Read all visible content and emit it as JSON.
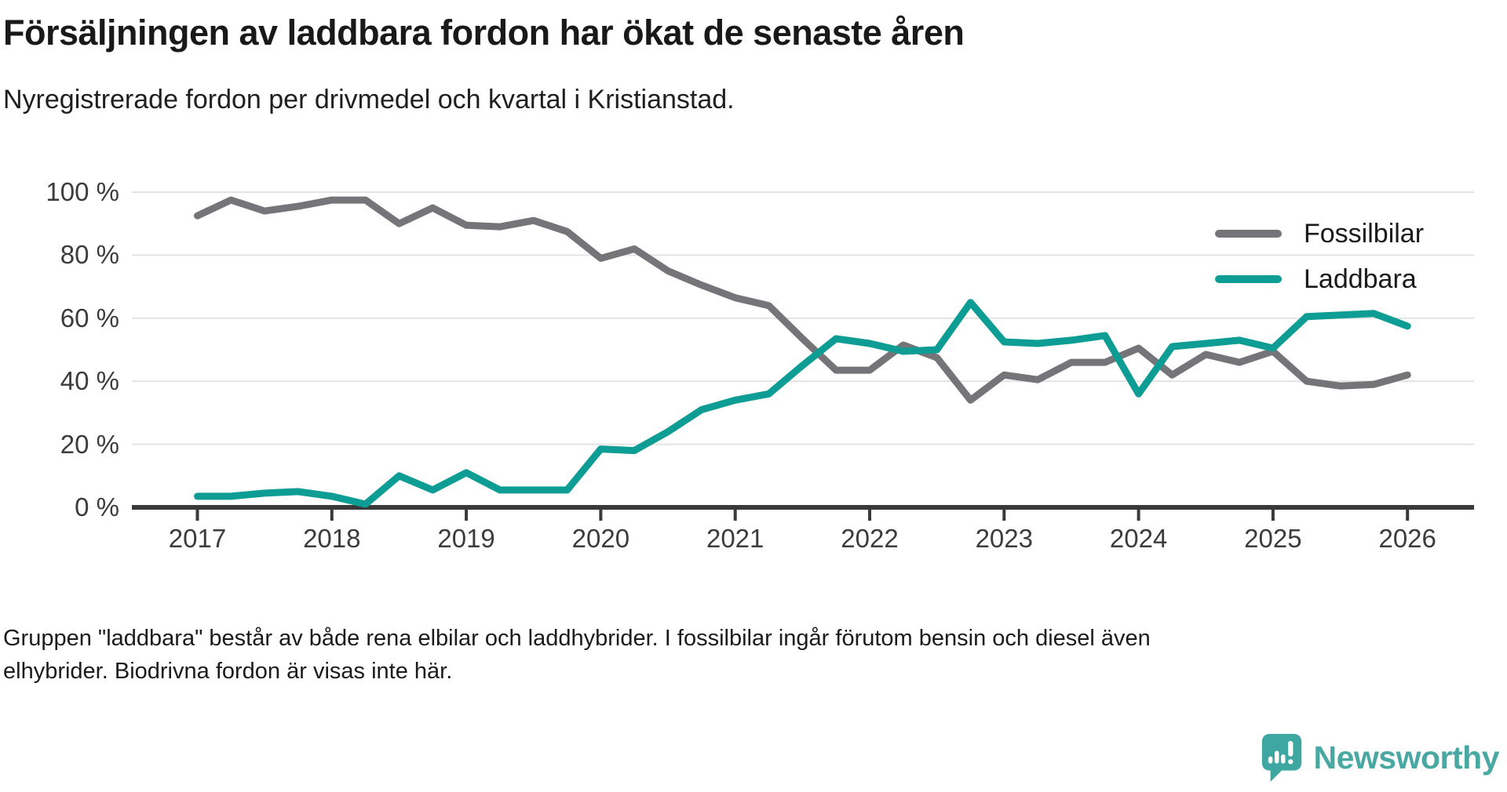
{
  "header": {
    "title": "Försäljningen av laddbara fordon har ökat de senaste åren",
    "subtitle": "Nyregistrerade fordon per drivmedel och kvartal i Kristianstad."
  },
  "legend": [
    {
      "label": "Fossilbilar",
      "color": "#757579"
    },
    {
      "label": "Laddbara",
      "color": "#0d9d94"
    }
  ],
  "footnote": {
    "line1": "Gruppen \"laddbara\" består av både rena elbilar och laddhybrider. I fossilbilar ingår förutom bensin och diesel även",
    "line2": "elhybrider. Biodrivna fordon är visas inte här."
  },
  "branding": {
    "name": "Newsworthy",
    "logo_icon": "speech-bubble-bar-chart-icon",
    "logo_color": "#3fa7a1",
    "text_color": "#4aa8a2"
  },
  "chart_data": {
    "type": "line",
    "title": "Försäljningen av laddbara fordon har ökat de senaste åren",
    "subtitle": "Nyregistrerade fordon per drivmedel och kvartal i Kristianstad.",
    "xlabel": "",
    "ylabel": "",
    "ylim": [
      0,
      100
    ],
    "grid": true,
    "legend_position": "top-right",
    "y_tick_labels": [
      "100 %",
      "80 %",
      "60 %",
      "40 %",
      "20 %",
      "0 %"
    ],
    "x_tick_labels": [
      "2017",
      "2018",
      "2019",
      "2020",
      "2021",
      "2022",
      "2023",
      "2024",
      "2025",
      "2026"
    ],
    "quarters": [
      "2017 Q1",
      "2017 Q2",
      "2017 Q3",
      "2017 Q4",
      "2018 Q1",
      "2018 Q2",
      "2018 Q3",
      "2018 Q4",
      "2019 Q1",
      "2019 Q2",
      "2019 Q3",
      "2019 Q4",
      "2020 Q1",
      "2020 Q2",
      "2020 Q3",
      "2020 Q4",
      "2021 Q1",
      "2021 Q2",
      "2021 Q3",
      "2021 Q4",
      "2022 Q1",
      "2022 Q2",
      "2022 Q3",
      "2022 Q4",
      "2023 Q1",
      "2023 Q2",
      "2023 Q3",
      "2023 Q4",
      "2024 Q1",
      "2024 Q2",
      "2024 Q3",
      "2024 Q4",
      "2025 Q1",
      "2025 Q2",
      "2025 Q3",
      "2025 Q4",
      "2026 Q1"
    ],
    "series": [
      {
        "name": "Fossilbilar",
        "color": "#757579",
        "unit": "%",
        "values": [
          92.5,
          97.5,
          94,
          95.5,
          97.5,
          97.5,
          90,
          95,
          89.5,
          89,
          91,
          87.5,
          79,
          82,
          75,
          70.5,
          66.5,
          64,
          53.5,
          43.5,
          43.5,
          51.5,
          47.5,
          34,
          42,
          40.5,
          46,
          46,
          50.5,
          42,
          48.5,
          46,
          49.5,
          40,
          38.5,
          39,
          42
        ]
      },
      {
        "name": "Laddbara",
        "color": "#0d9d94",
        "unit": "%",
        "values": [
          3.5,
          3.5,
          4.5,
          5,
          3.5,
          1,
          10,
          5.5,
          11,
          5.5,
          5.5,
          5.5,
          18.5,
          18,
          24,
          31,
          34,
          36,
          45,
          53.5,
          52,
          49.5,
          50,
          65,
          52.5,
          52,
          53,
          54.5,
          36,
          51,
          52,
          53,
          50.5,
          60.5,
          61,
          61.5,
          57.5
        ]
      }
    ]
  }
}
